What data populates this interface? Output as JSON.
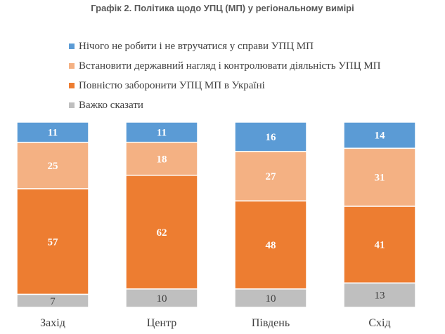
{
  "chart_data": {
    "type": "bar",
    "stacked": true,
    "title": "Графік 2. Політика щодо УПЦ (МП) у регіональному вимірі",
    "xlabel": "",
    "ylabel": "",
    "ylim": [
      0,
      100
    ],
    "grid": false,
    "legend_position": "top-left",
    "categories": [
      "Захід",
      "Центр",
      "Південь",
      "Схід"
    ],
    "series": [
      {
        "name": "Нічого не робити і не втручатися у справи УПЦ МП",
        "color": "#5B9BD5",
        "label_color": "#ffffff",
        "values": [
          11,
          11,
          16,
          14
        ]
      },
      {
        "name": "Встановити державний нагляд і контролювати діяльність УПЦ МП",
        "color": "#F4B183",
        "label_color": "#ffffff",
        "values": [
          25,
          18,
          27,
          31
        ]
      },
      {
        "name": "Повністю заборонити УПЦ МП в Україні",
        "color": "#ED7D31",
        "label_color": "#ffffff",
        "values": [
          57,
          62,
          48,
          41
        ]
      },
      {
        "name": "Важко сказати",
        "color": "#BFBFBF",
        "label_color": "#404040",
        "values": [
          7,
          10,
          10,
          13
        ]
      }
    ]
  }
}
